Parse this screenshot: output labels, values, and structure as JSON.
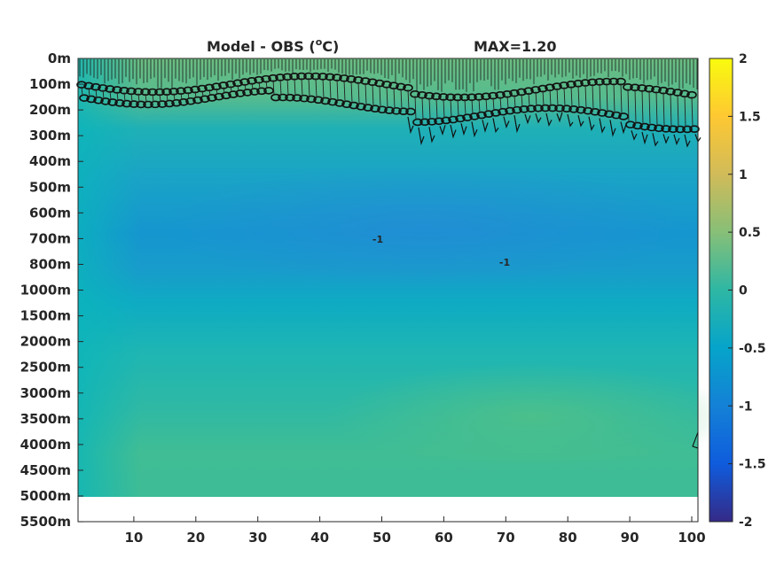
{
  "chart_data": {
    "type": "heatmap",
    "title": "Model - OBS (",
    "title_sup": "o",
    "title_unit": "C)",
    "max_label": "MAX=1.20",
    "xlabel": "",
    "ylabel": "",
    "x_ticks": [
      "10",
      "20",
      "30",
      "40",
      "50",
      "60",
      "70",
      "80",
      "90",
      "100"
    ],
    "x_range": [
      1,
      101
    ],
    "y_ticks": [
      "0m",
      "100m",
      "200m",
      "300m",
      "400m",
      "500m",
      "600m",
      "700m",
      "800m",
      "1000m",
      "1500m",
      "2000m",
      "2500m",
      "3000m",
      "3500m",
      "4000m",
      "4500m",
      "5000m",
      "5500m"
    ],
    "colorbar": {
      "range": [
        -2,
        2
      ],
      "ticks": [
        "2",
        "1.5",
        "1",
        "0.5",
        "0",
        "-0.5",
        "-1",
        "-1.5",
        "-2"
      ],
      "colormap": "parula",
      "colors": [
        "#352a87",
        "#0f5cdd",
        "#1481d6",
        "#06a4ca",
        "#2eb7a4",
        "#87bf77",
        "#d1bb59",
        "#fec832",
        "#f9fb0e"
      ]
    },
    "contour_labels": [
      "-1",
      "-1"
    ],
    "field_description_values": {
      "surface_0_200m": 0.6,
      "upper_300_600m": -0.3,
      "core_700m": -0.7,
      "mid_1000_1500m": -0.2,
      "deep_3500_4500m": 0.3
    },
    "no_data_below": "5000m",
    "grid": false
  }
}
